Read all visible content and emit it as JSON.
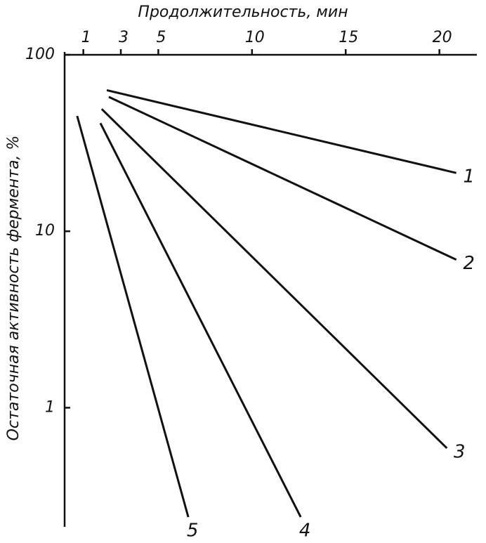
{
  "chart_data": {
    "type": "line",
    "xlabel": "Продолжительность, мин",
    "ylabel": "Остаточная активность фермента, %",
    "xlim": [
      0,
      22
    ],
    "xticks": [
      1,
      3,
      5,
      10,
      15,
      20
    ],
    "ylim": [
      0.2,
      100
    ],
    "yticks": [
      1,
      10,
      100
    ],
    "yscale": "log",
    "grid": false,
    "series": [
      {
        "name": "1",
        "color": "#111111",
        "x": [
          2.25,
          20.9
        ],
        "values": [
          63,
          21.4
        ]
      },
      {
        "name": "2",
        "color": "#111111",
        "x": [
          2.36,
          20.9
        ],
        "values": [
          57.7,
          6.9
        ]
      },
      {
        "name": "3",
        "color": "#111111",
        "x": [
          1.98,
          20.4
        ],
        "values": [
          49.3,
          0.59
        ]
      },
      {
        "name": "4",
        "color": "#111111",
        "x": [
          1.91,
          12.6
        ],
        "values": [
          41,
          0.24
        ]
      },
      {
        "name": "5",
        "color": "#111111",
        "x": [
          0.67,
          6.6
        ],
        "values": [
          45,
          0.24
        ]
      }
    ]
  }
}
